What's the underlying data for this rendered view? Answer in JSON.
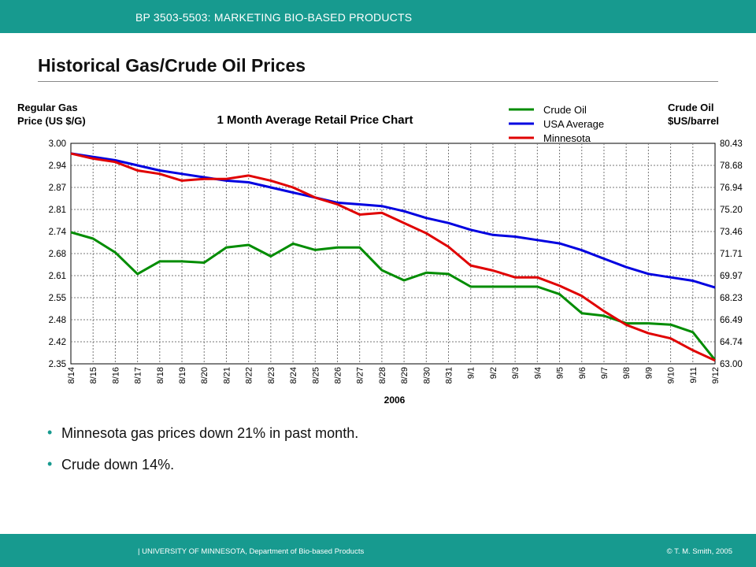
{
  "header": {
    "course": "BP 3503-5503: MARKETING BIO-BASED PRODUCTS"
  },
  "slide": {
    "title": "Historical Gas/Crude Oil Prices"
  },
  "bullets": [
    "Minnesota gas prices down 21% in past month.",
    "Crude down 14%."
  ],
  "footer": {
    "left": "| UNIVERSITY OF MINNESOTA, Department of Bio-based Products",
    "right": "© T. M. Smith, 2005"
  },
  "chart_data": {
    "type": "line",
    "title": "1 Month Average Retail Price Chart",
    "ylabel_left": [
      "Regular Gas",
      "Price (US $/G)"
    ],
    "ylabel_right": [
      "Crude Oil",
      "$US/barrel"
    ],
    "xlabel": "2006",
    "grid": true,
    "legend": "top-right",
    "categories": [
      "8/14",
      "8/15",
      "8/16",
      "8/17",
      "8/18",
      "8/19",
      "8/20",
      "8/21",
      "8/22",
      "8/23",
      "8/24",
      "8/25",
      "8/26",
      "8/27",
      "8/28",
      "8/29",
      "8/30",
      "8/31",
      "9/1",
      "9/2",
      "9/3",
      "9/4",
      "9/5",
      "9/6",
      "9/7",
      "9/8",
      "9/9",
      "9/10",
      "9/11",
      "9/12"
    ],
    "x": [
      0,
      1,
      1.5,
      2,
      2.5,
      3,
      3.5,
      4,
      4.5,
      5,
      5.5,
      6,
      6.5,
      7,
      7.5,
      8,
      8.5,
      9,
      9.5,
      10,
      10.5,
      11,
      11.5,
      12,
      12.5,
      13,
      13.5,
      14,
      14.5,
      15,
      15.5,
      16,
      16.5,
      17,
      17.5,
      18,
      18.5,
      19,
      19.5,
      20,
      20.5,
      21,
      21.5,
      22,
      22.5,
      23,
      23.5,
      24,
      24.5,
      25,
      25.5,
      26,
      26.5,
      27,
      27.5,
      28,
      28.5,
      29
    ],
    "left_ticks": [
      "3.00",
      "2.94",
      "2.87",
      "2.81",
      "2.74",
      "2.68",
      "2.61",
      "2.55",
      "2.48",
      "2.42",
      "2.35"
    ],
    "right_ticks": [
      "80.43",
      "78.68",
      "76.94",
      "75.20",
      "73.46",
      "71.71",
      "69.97",
      "68.23",
      "66.49",
      "64.74",
      "63.00"
    ],
    "ylim_left": [
      2.35,
      3.0
    ],
    "ylim_right": [
      63.0,
      80.43
    ],
    "series": [
      {
        "name": "Crude Oil",
        "color": "#008c00",
        "axis": "right",
        "x": [
          0,
          1,
          2,
          3,
          4,
          5,
          6,
          7,
          8,
          9,
          10,
          11,
          12,
          13,
          14,
          15,
          16,
          17,
          18,
          19,
          20,
          21,
          22,
          23,
          24,
          25,
          26,
          27,
          28,
          29
        ],
        "values": [
          73.4,
          72.9,
          71.8,
          70.1,
          71.1,
          71.1,
          71.0,
          72.2,
          72.4,
          71.5,
          72.5,
          72.0,
          72.2,
          72.2,
          70.4,
          69.6,
          70.2,
          70.1,
          69.1,
          69.1,
          69.1,
          69.1,
          68.5,
          67.0,
          66.8,
          66.2,
          66.2,
          66.1,
          65.5,
          63.3
        ]
      },
      {
        "name": "USA Average",
        "color": "#0000e0",
        "axis": "left",
        "x": [
          0,
          1,
          2,
          3,
          4,
          5,
          6,
          7,
          8,
          9,
          10,
          11,
          12,
          13,
          14,
          15,
          16,
          17,
          18,
          19,
          20,
          21,
          22,
          23,
          24,
          25,
          26,
          27,
          28,
          29
        ],
        "values": [
          2.97,
          2.96,
          2.95,
          2.935,
          2.92,
          2.91,
          2.9,
          2.89,
          2.885,
          2.87,
          2.855,
          2.84,
          2.825,
          2.82,
          2.815,
          2.8,
          2.78,
          2.765,
          2.745,
          2.73,
          2.725,
          2.715,
          2.705,
          2.685,
          2.66,
          2.635,
          2.615,
          2.605,
          2.595,
          2.575
        ]
      },
      {
        "name": "Minnesota",
        "color": "#e00000",
        "axis": "left",
        "x": [
          0,
          1,
          2,
          3,
          4,
          5,
          6,
          7,
          8,
          9,
          10,
          11,
          12,
          13,
          14,
          15,
          16,
          17,
          18,
          19,
          20,
          21,
          22,
          23,
          24,
          25,
          26,
          27,
          28,
          29
        ],
        "values": [
          2.97,
          2.955,
          2.945,
          2.92,
          2.91,
          2.89,
          2.895,
          2.895,
          2.905,
          2.89,
          2.87,
          2.84,
          2.82,
          2.79,
          2.795,
          2.765,
          2.735,
          2.695,
          2.64,
          2.625,
          2.605,
          2.605,
          2.58,
          2.55,
          2.505,
          2.465,
          2.44,
          2.425,
          2.39,
          2.36
        ]
      }
    ]
  }
}
